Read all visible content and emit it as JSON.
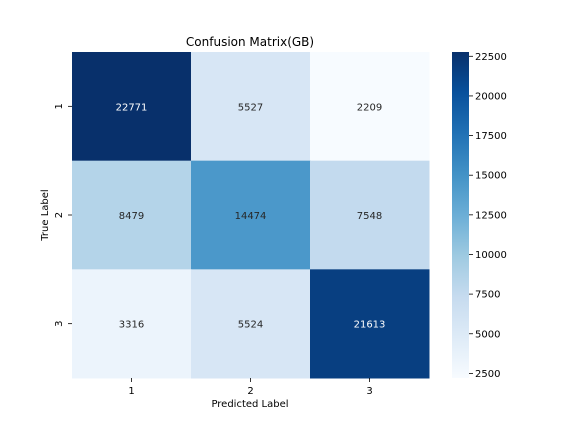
{
  "chart_data": {
    "type": "heatmap",
    "title": "Confusion Matrix(GB)",
    "xlabel": "Predicted Label",
    "ylabel": "True Label",
    "x_categories": [
      "1",
      "2",
      "3"
    ],
    "y_categories": [
      "1",
      "2",
      "3"
    ],
    "values": [
      [
        22771,
        5527,
        2209
      ],
      [
        8479,
        14474,
        7548
      ],
      [
        3316,
        5524,
        21613
      ]
    ],
    "value_labels": [
      [
        "22771",
        "5527",
        "2209"
      ],
      [
        "8479",
        "14474",
        "7548"
      ],
      [
        "3316",
        "5524",
        "21613"
      ]
    ],
    "colormap": "Blues",
    "colorbar_range": [
      2209,
      22771
    ],
    "colorbar_ticks": [
      2500,
      5000,
      7500,
      10000,
      12500,
      15000,
      17500,
      20000,
      22500
    ],
    "colorbar_tick_labels": [
      "2500",
      "5000",
      "7500",
      "10000",
      "12500",
      "15000",
      "17500",
      "20000",
      "22500"
    ]
  }
}
